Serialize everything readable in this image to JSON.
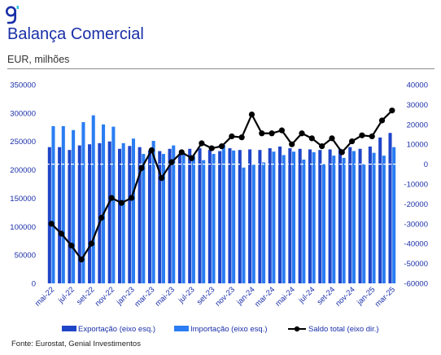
{
  "header": {
    "title": "Balança Comercial",
    "subtitle": "EUR, milhões"
  },
  "footer": {
    "source": "Fonte: Eurostat, Genial Investimentos"
  },
  "colors": {
    "brand": "#1a2fa8",
    "export_bar": "#1f45c9",
    "import_bar": "#2a7df2",
    "line": "#000000",
    "zero_line": "#cfd4e8"
  },
  "chart_data": {
    "type": "bar",
    "categories": [
      "mai-22",
      "jun-22",
      "jul-22",
      "ago-22",
      "set-22",
      "out-22",
      "nov-22",
      "dez-22",
      "jan-23",
      "fev-23",
      "mar-23",
      "abr-23",
      "mai-23",
      "jun-23",
      "jul-23",
      "ago-23",
      "set-23",
      "out-23",
      "nov-23",
      "dez-23",
      "jan-24",
      "fev-24",
      "mar-24",
      "abr-24",
      "mai-24",
      "jun-24",
      "jul-24",
      "ago-24",
      "set-24",
      "out-24",
      "nov-24",
      "dez-24",
      "jan-25",
      "fev-25",
      "mar-25"
    ],
    "x_tick_labels": [
      "mai-22",
      "jul-22",
      "set-22",
      "nov-22",
      "jan-23",
      "mar-23",
      "mai-23",
      "jul-23",
      "set-23",
      "nov-23",
      "jan-24",
      "mar-24",
      "mai-24",
      "jul-24",
      "set-24",
      "nov-24",
      "jan-25",
      "mar-25"
    ],
    "series": [
      {
        "name": "Exportação (eixo esq.)",
        "axis": "left",
        "type": "bar",
        "values": [
          240000,
          240000,
          235000,
          243000,
          245000,
          247000,
          250000,
          237000,
          242000,
          240000,
          234000,
          233000,
          237000,
          228000,
          237000,
          238000,
          235000,
          233000,
          238000,
          235000,
          236000,
          235000,
          238000,
          241000,
          238000,
          237000,
          236000,
          235000,
          236000,
          237000,
          240000,
          237000,
          241000,
          257000,
          265000
        ]
      },
      {
        "name": "Importação (eixo esq.)",
        "axis": "left",
        "type": "bar",
        "values": [
          277000,
          277000,
          270000,
          284000,
          296000,
          280000,
          276000,
          247000,
          255000,
          228000,
          251000,
          228000,
          243000,
          230000,
          225000,
          217000,
          228000,
          244000,
          234000,
          204000,
          209000,
          213000,
          232000,
          226000,
          232000,
          218000,
          231000,
          210000,
          225000,
          221000,
          233000,
          210000,
          230000,
          225000,
          240000
        ]
      },
      {
        "name": "Saldo total (eixo dir.)",
        "axis": "right",
        "type": "line",
        "values": [
          -30000,
          -35000,
          -41000,
          -48000,
          -40000,
          -27000,
          -17000,
          -19500,
          -17000,
          -2000,
          7000,
          -7000,
          1000,
          6000,
          3000,
          10500,
          8000,
          9000,
          14000,
          13500,
          25000,
          15500,
          15500,
          17000,
          10000,
          15500,
          13000,
          9000,
          13000,
          6000,
          11500,
          14500,
          14000,
          22000,
          27000
        ]
      }
    ],
    "ylim_left": [
      0,
      350000
    ],
    "yticks_left": [
      "0",
      "50000",
      "100000",
      "150000",
      "200000",
      "250000",
      "300000",
      "350000"
    ],
    "ylim_right": [
      -60000,
      40000
    ],
    "yticks_right": [
      "-60000",
      "-50000",
      "-40000",
      "-30000",
      "-20000",
      "-10000",
      "0",
      "10000",
      "20000",
      "30000",
      "40000"
    ],
    "legend_position": "bottom",
    "grid": false
  }
}
